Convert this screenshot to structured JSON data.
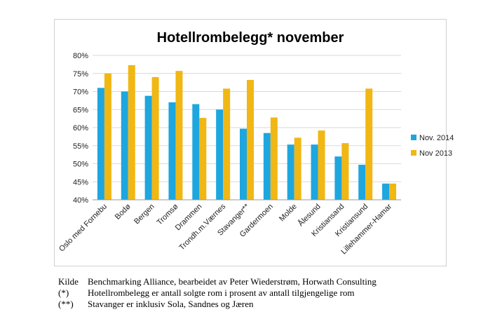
{
  "chart_data": {
    "type": "bar",
    "title": "Hotellrombelegg* november",
    "categories": [
      "Oslo med Fornebu",
      "Bodø",
      "Bergen",
      "Tromsø",
      "Drammen",
      "Trondh.m.Værnes",
      "Stavanger**",
      "Gardermoen",
      "Molde",
      "Ålesund",
      "Kristiansand",
      "Kristiansund",
      "Lillehammer-Hamar"
    ],
    "series": [
      {
        "name": "Nov. 2014",
        "color": "#1ea6df",
        "values": [
          71.0,
          70.0,
          68.8,
          67.0,
          66.5,
          65.0,
          59.7,
          58.5,
          55.3,
          55.3,
          52.0,
          49.7,
          44.5
        ]
      },
      {
        "name": "Nov 2013",
        "color": "#f0b715",
        "values": [
          75.0,
          77.3,
          74.0,
          75.7,
          62.7,
          70.8,
          73.2,
          62.8,
          57.2,
          59.2,
          55.7,
          70.8,
          44.5
        ]
      }
    ],
    "ylim": [
      40,
      80
    ],
    "yticks": [
      40,
      45,
      50,
      55,
      60,
      65,
      70,
      75,
      80
    ],
    "ytick_labels": [
      "40%",
      "45%",
      "50%",
      "55%",
      "60%",
      "65%",
      "70%",
      "75%",
      "80%"
    ],
    "grid": true,
    "legend_position": "right",
    "xlabel": "",
    "ylabel": ""
  },
  "footnotes": [
    {
      "key": "Kilde",
      "text": "Benchmarking Alliance, bearbeidet av Peter Wiederstrøm, Horwath Consulting"
    },
    {
      "key": "(*)",
      "text": "Hotellrombelegg er antall solgte rom i prosent av antall tilgjengelige rom"
    },
    {
      "key": "(**)",
      "text": "Stavanger er inklusiv Sola, Sandnes og Jæren"
    }
  ]
}
